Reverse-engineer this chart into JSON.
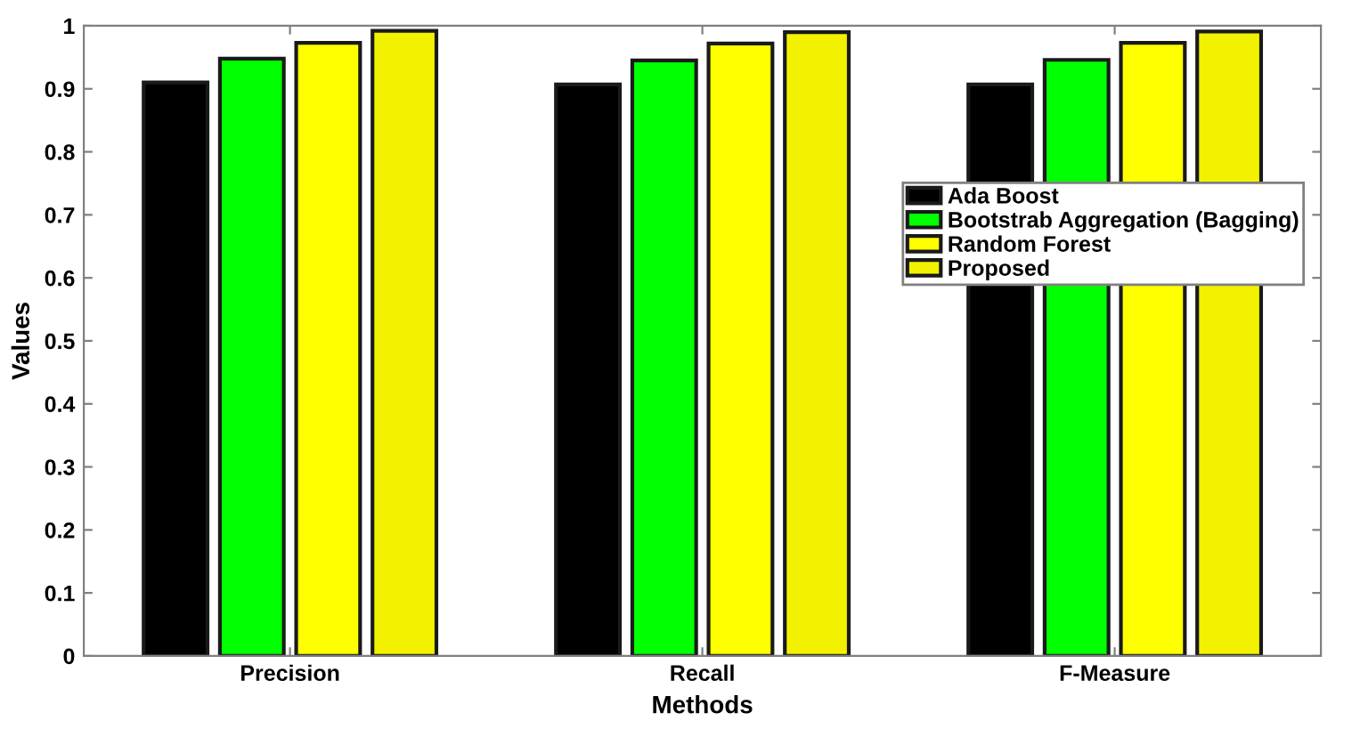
{
  "chart_data": {
    "type": "bar",
    "xlabel": "Methods",
    "ylabel": "Values",
    "categories": [
      "Precision",
      "Recall",
      "F-Measure"
    ],
    "series": [
      {
        "name": "Ada Boost",
        "color": "#000000",
        "values": [
          0.91,
          0.907,
          0.907
        ]
      },
      {
        "name": "Bootstrab Aggregation (Bagging)",
        "color": "#00ff00",
        "values": [
          0.948,
          0.945,
          0.946
        ]
      },
      {
        "name": "Random Forest",
        "color": "#ffff00",
        "values": [
          0.973,
          0.972,
          0.973
        ]
      },
      {
        "name": "Proposed",
        "color": "#f2f200",
        "values": [
          0.992,
          0.99,
          0.991
        ]
      }
    ],
    "ylim": [
      0,
      1
    ],
    "yticks": [
      0,
      0.1,
      0.2,
      0.3,
      0.4,
      0.5,
      0.6,
      0.7,
      0.8,
      0.9,
      1
    ],
    "grid": false,
    "legend": "right"
  }
}
